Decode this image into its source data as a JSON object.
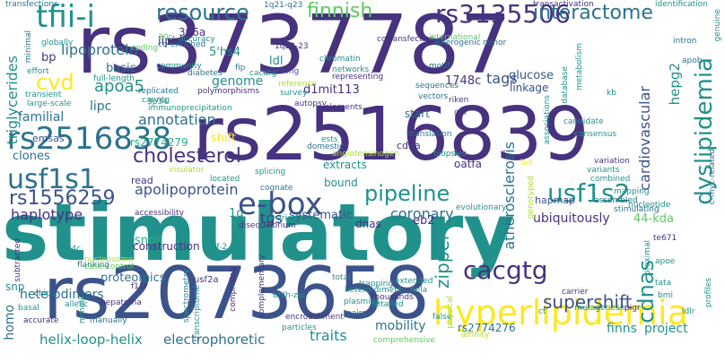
{
  "palette": {
    "dark_purple": "#46327e",
    "indigo": "#3b528b",
    "steel_blue": "#365c8d",
    "blue": "#2c728e",
    "teal": "#21918c",
    "green": "#28ae80",
    "light_green": "#5ec962",
    "lime": "#addc30",
    "yellow": "#fde725"
  },
  "words": [
    {
      "text": "stimulatory",
      "color": "teal",
      "weight": "bold"
    },
    {
      "text": "rs3737787",
      "color": "dark_purple"
    },
    {
      "text": "rs2516839",
      "color": "dark_purple"
    },
    {
      "text": "rs2073658",
      "color": "indigo"
    },
    {
      "text": "hyperlipidemia",
      "color": "yellow"
    },
    {
      "text": "e-box",
      "color": "indigo"
    },
    {
      "text": "rs2516838",
      "color": "blue"
    },
    {
      "text": "tfii-i",
      "color": "teal"
    },
    {
      "text": "usf1s1",
      "color": "blue"
    },
    {
      "text": "rs3135506",
      "color": "dark_purple"
    },
    {
      "text": "interactome",
      "color": "blue"
    },
    {
      "text": "resource",
      "color": "blue"
    },
    {
      "text": "dyslipidemia",
      "color": "teal"
    },
    {
      "text": "pipeline",
      "color": "teal"
    },
    {
      "text": "usf1s2",
      "color": "teal"
    },
    {
      "text": "cacgtg",
      "color": "dark_purple"
    },
    {
      "text": "rs1556259",
      "color": "indigo"
    },
    {
      "text": "cholesterol",
      "color": "dark_purple"
    },
    {
      "text": "supershift",
      "color": "indigo"
    },
    {
      "text": "cdnas",
      "color": "teal"
    },
    {
      "text": "finnish",
      "color": "light_green"
    },
    {
      "text": "cvd",
      "color": "yellow"
    },
    {
      "text": "apolipoprotein",
      "color": "indigo"
    },
    {
      "text": "annotation",
      "color": "blue"
    },
    {
      "text": "coronary",
      "color": "blue"
    },
    {
      "text": "haplotype",
      "color": "dark_purple"
    },
    {
      "text": "atherosclerosis",
      "color": "blue"
    },
    {
      "text": "zipper",
      "color": "teal"
    },
    {
      "text": "apoa5",
      "color": "teal"
    },
    {
      "text": "lipoprotein",
      "color": "blue"
    },
    {
      "text": "triglycerides",
      "color": "teal"
    },
    {
      "text": "cardiovascular",
      "color": "indigo"
    },
    {
      "text": "genome",
      "color": "teal"
    },
    {
      "text": "tags",
      "color": "indigo"
    },
    {
      "text": "traits",
      "color": "teal"
    },
    {
      "text": "mobility",
      "color": "blue"
    },
    {
      "text": "heterodimers",
      "color": "blue"
    },
    {
      "text": "helix-loop-helix",
      "color": "teal"
    },
    {
      "text": "electrophoretic",
      "color": "blue"
    },
    {
      "text": "proteomics",
      "color": "blue"
    },
    {
      "text": "ubiquitously",
      "color": "dark_purple"
    },
    {
      "text": "44-kda",
      "color": "light_green"
    },
    {
      "text": "familial",
      "color": "blue"
    },
    {
      "text": "lipc",
      "color": "blue"
    },
    {
      "text": "clones",
      "color": "blue"
    },
    {
      "text": "homo",
      "color": "blue"
    },
    {
      "text": "finns",
      "color": "teal"
    },
    {
      "text": "project",
      "color": "teal"
    },
    {
      "text": "systematic",
      "color": "indigo"
    },
    {
      "text": "shift",
      "color": "yellow"
    },
    {
      "text": "rs2774279",
      "color": "green"
    },
    {
      "text": "tgs",
      "color": "dark_purple"
    },
    {
      "text": "dnas",
      "color": "dark_purple"
    },
    {
      "text": "eb2",
      "color": "dark_purple"
    },
    {
      "text": "1q",
      "color": "teal"
    },
    {
      "text": "snps",
      "color": "green"
    },
    {
      "text": "lipid",
      "color": "dark_purple"
    },
    {
      "text": "306a",
      "color": "dark_purple"
    },
    {
      "text": "5'hs4",
      "color": "teal"
    },
    {
      "text": "ldl",
      "color": "teal"
    },
    {
      "text": "d1mit113",
      "color": "dark_purple"
    },
    {
      "text": "1748c",
      "color": "dark_purple"
    },
    {
      "text": "hepg2",
      "color": "teal"
    },
    {
      "text": "basic",
      "color": "blue"
    },
    {
      "text": "glucose",
      "color": "indigo"
    },
    {
      "text": "linkage",
      "color": "indigo"
    },
    {
      "text": "bp",
      "color": "dark_purple"
    },
    {
      "text": "construction",
      "color": "dark_purple"
    },
    {
      "text": "bound",
      "color": "teal"
    },
    {
      "text": "extracts",
      "color": "teal"
    },
    {
      "text": "hapmap",
      "color": "indigo"
    },
    {
      "text": "snp",
      "color": "teal"
    },
    {
      "text": "rs2774276",
      "color": "blue"
    },
    {
      "text": "oatfa",
      "color": "dark_purple"
    },
    {
      "text": "cdna",
      "color": "dark_purple"
    },
    {
      "text": "start",
      "color": "blue"
    },
    {
      "text": "read",
      "color": "dark_purple"
    },
    {
      "text": "emsas",
      "color": "indigo"
    },
    {
      "text": "transfections",
      "color": "blue"
    },
    {
      "text": "minimal",
      "color": "blue"
    },
    {
      "text": "effort",
      "color": "teal"
    },
    {
      "text": "transient",
      "color": "teal"
    },
    {
      "text": "large-scale",
      "color": "teal"
    },
    {
      "text": "full-length",
      "color": "teal"
    },
    {
      "text": "globally",
      "color": "teal"
    },
    {
      "text": "coding",
      "color": "light_green"
    },
    {
      "text": "accuracy",
      "color": "teal"
    },
    {
      "text": "co-enriched",
      "color": "blue"
    },
    {
      "text": "20c",
      "color": "light_green"
    },
    {
      "text": "community",
      "color": "teal"
    },
    {
      "text": "diabetes",
      "color": "blue"
    },
    {
      "text": "replicated",
      "color": "blue"
    },
    {
      "text": "canntg",
      "color": "teal"
    },
    {
      "text": "immunoprecipitation",
      "color": "teal"
    },
    {
      "text": "polymorphisms",
      "color": "dark_purple"
    },
    {
      "text": "fip",
      "color": "blue"
    },
    {
      "text": "1q22-23",
      "color": "dark_purple"
    },
    {
      "text": "1q21-q23",
      "color": "blue"
    },
    {
      "text": "cotransfection",
      "color": "dark_purple"
    },
    {
      "text": "transactivation",
      "color": "dark_purple"
    },
    {
      "text": "identification",
      "color": "teal"
    },
    {
      "text": "international",
      "color": "light_green"
    },
    {
      "text": "atherogenic",
      "color": "blue"
    },
    {
      "text": "minor",
      "color": "blue"
    },
    {
      "text": "intron",
      "color": "blue"
    },
    {
      "text": "apob",
      "color": "blue"
    },
    {
      "text": "motif",
      "color": "blue"
    },
    {
      "text": "sequences",
      "color": "blue"
    },
    {
      "text": "networks",
      "color": "teal"
    },
    {
      "text": "representing",
      "color": "dark_purple"
    },
    {
      "text": "chromatin",
      "color": "teal"
    },
    {
      "text": "cacatg",
      "color": "teal"
    },
    {
      "text": "spanning",
      "color": "indigo"
    },
    {
      "text": "survey",
      "color": "teal"
    },
    {
      "text": "reference",
      "color": "lime"
    },
    {
      "text": "autopsy",
      "color": "dark_purple"
    },
    {
      "text": "elements",
      "color": "dark_purple"
    },
    {
      "text": "vectors",
      "color": "blue"
    },
    {
      "text": "riken",
      "color": "dark_purple"
    },
    {
      "text": "gel",
      "color": "dark_purple"
    },
    {
      "text": "kb",
      "color": "teal"
    },
    {
      "text": "metabolism",
      "color": "teal"
    },
    {
      "text": "database",
      "color": "teal"
    },
    {
      "text": "associations",
      "color": "teal"
    },
    {
      "text": "candidate",
      "color": "teal"
    },
    {
      "text": "consensus",
      "color": "teal"
    },
    {
      "text": "variation",
      "color": "dark_purple"
    },
    {
      "text": "variants",
      "color": "teal"
    },
    {
      "text": "hdl",
      "color": "yellow"
    },
    {
      "text": "translation",
      "color": "blue"
    },
    {
      "text": "ests",
      "color": "teal"
    },
    {
      "text": "domestic",
      "color": "blue"
    },
    {
      "text": "angiotensinogen",
      "color": "lime"
    },
    {
      "text": "fch",
      "color": "dark_purple"
    },
    {
      "text": "nucleotide",
      "color": "teal"
    },
    {
      "text": "stimulating",
      "color": "blue"
    },
    {
      "text": "combined",
      "color": "teal"
    },
    {
      "text": "mapping",
      "color": "teal"
    },
    {
      "text": "assembled",
      "color": "blue"
    },
    {
      "text": "genotyped",
      "color": "lime"
    },
    {
      "text": "evolutionary",
      "color": "teal"
    },
    {
      "text": "splicing",
      "color": "teal"
    },
    {
      "text": "cognate",
      "color": "blue"
    },
    {
      "text": "located",
      "color": "teal"
    },
    {
      "text": "insulator",
      "color": "lime"
    },
    {
      "text": "disequilibrium",
      "color": "dark_purple"
    },
    {
      "text": "libraries",
      "color": "teal"
    },
    {
      "text": "accessibility",
      "color": "dark_purple"
    },
    {
      "text": "flanking",
      "color": "blue"
    },
    {
      "text": "nucleosome",
      "color": "lime"
    },
    {
      "text": "case-control",
      "color": "light_green"
    },
    {
      "text": "thousands",
      "color": "dark_purple"
    },
    {
      "text": "hela",
      "color": "teal"
    },
    {
      "text": "detailed",
      "color": "teal"
    },
    {
      "text": "extended",
      "color": "teal"
    },
    {
      "text": "trapping",
      "color": "teal"
    },
    {
      "text": "hetero-dimers",
      "color": "teal"
    },
    {
      "text": "te671",
      "color": "dark_purple"
    },
    {
      "text": "apoe",
      "color": "teal"
    },
    {
      "text": "tata",
      "color": "teal"
    },
    {
      "text": "bmi",
      "color": "teal"
    },
    {
      "text": "ldlr",
      "color": "teal"
    },
    {
      "text": "profiles",
      "color": "teal"
    },
    {
      "text": "pigr",
      "color": "dark_purple"
    },
    {
      "text": "proximal",
      "color": "teal"
    },
    {
      "text": "carrier",
      "color": "dark_purple"
    },
    {
      "text": "mutagenesis",
      "color": "teal"
    },
    {
      "text": "ct",
      "color": "teal"
    },
    {
      "text": "usf2a",
      "color": "dark_purple"
    },
    {
      "text": "f11r",
      "color": "dark_purple"
    },
    {
      "text": "bhlh-zip",
      "color": "teal"
    },
    {
      "text": "plasmids",
      "color": "teal"
    },
    {
      "text": "pairs",
      "color": "blue"
    },
    {
      "text": "encroachment",
      "color": "dark_purple"
    },
    {
      "text": "particles",
      "color": "teal"
    },
    {
      "text": "manually",
      "color": "blue"
    },
    {
      "text": "mmol/l",
      "color": "teal"
    },
    {
      "text": "basal",
      "color": "teal"
    },
    {
      "text": "hepatoma",
      "color": "dark_purple"
    },
    {
      "text": "allelic",
      "color": "teal"
    },
    {
      "text": "accurate",
      "color": "dark_purple"
    },
    {
      "text": "chip",
      "color": "teal"
    },
    {
      "text": "subtracted",
      "color": "dark_purple"
    },
    {
      "text": "comprising",
      "color": "dark_purple"
    },
    {
      "text": "complementary",
      "color": "dark_purple"
    },
    {
      "text": "spectrometry",
      "color": "teal"
    },
    {
      "text": "transcriptome",
      "color": "teal"
    },
    {
      "text": "total",
      "color": "teal"
    },
    {
      "text": "comprehensive",
      "color": "light_green"
    },
    {
      "text": "affinity",
      "color": "lime"
    },
    {
      "text": "false",
      "color": "teal"
    },
    {
      "text": "physical",
      "color": "lime"
    },
    {
      "text": "biopsies",
      "color": "teal"
    },
    {
      "text": "c-myc-related",
      "color": "blue"
    },
    {
      "text": "genuine",
      "color": "teal"
    },
    {
      "text": "rbf-2",
      "color": "teal"
    },
    {
      "text": "514c",
      "color": "teal"
    },
    {
      "text": "3p34",
      "color": "teal"
    }
  ]
}
